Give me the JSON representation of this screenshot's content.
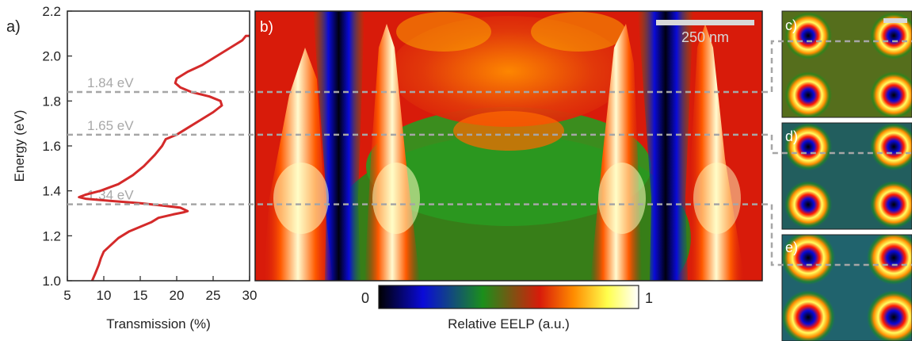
{
  "panels": {
    "a": "a)",
    "b": "b)",
    "c": "c)",
    "d": "d)",
    "e": "e)"
  },
  "chart_data": [
    {
      "type": "line",
      "panel": "a)",
      "xlabel": "Transmission (%)",
      "ylabel": "Energy (eV)",
      "xlim": [
        5,
        30
      ],
      "ylim": [
        1.0,
        2.2
      ],
      "xticks": [
        "5",
        "10",
        "15",
        "20",
        "25",
        "30"
      ],
      "yticks": [
        "1.0",
        "1.2",
        "1.4",
        "1.6",
        "1.8",
        "2.0",
        "2.2"
      ],
      "series_color": "#d42a2a",
      "points": [
        [
          8.4,
          1.0
        ],
        [
          8.8,
          1.03
        ],
        [
          9.3,
          1.07
        ],
        [
          9.6,
          1.1
        ],
        [
          10.0,
          1.13
        ],
        [
          11.0,
          1.16
        ],
        [
          12.0,
          1.19
        ],
        [
          13.5,
          1.22
        ],
        [
          15.0,
          1.24
        ],
        [
          16.5,
          1.26
        ],
        [
          17.5,
          1.28
        ],
        [
          19.5,
          1.295
        ],
        [
          21.0,
          1.305
        ],
        [
          21.5,
          1.31
        ],
        [
          20.5,
          1.325
        ],
        [
          18.0,
          1.335
        ],
        [
          15.0,
          1.345
        ],
        [
          11.0,
          1.355
        ],
        [
          7.5,
          1.365
        ],
        [
          6.6,
          1.372
        ],
        [
          7.5,
          1.383
        ],
        [
          9.5,
          1.4
        ],
        [
          12.0,
          1.43
        ],
        [
          14.0,
          1.47
        ],
        [
          15.5,
          1.51
        ],
        [
          17.0,
          1.56
        ],
        [
          18.0,
          1.6
        ],
        [
          18.5,
          1.63
        ],
        [
          20.0,
          1.65
        ],
        [
          21.5,
          1.68
        ],
        [
          23.5,
          1.72
        ],
        [
          25.0,
          1.75
        ],
        [
          26.2,
          1.78
        ],
        [
          26.0,
          1.8
        ],
        [
          24.5,
          1.82
        ],
        [
          22.0,
          1.84
        ],
        [
          20.5,
          1.86
        ],
        [
          19.8,
          1.88
        ],
        [
          20.0,
          1.9
        ],
        [
          21.5,
          1.93
        ],
        [
          23.5,
          1.96
        ],
        [
          25.0,
          1.99
        ],
        [
          26.5,
          2.02
        ],
        [
          28.0,
          2.05
        ],
        [
          29.0,
          2.07
        ],
        [
          29.5,
          2.09
        ],
        [
          30.0,
          2.09
        ]
      ],
      "hlines": [
        {
          "energy": 1.84,
          "label": "1.84 eV"
        },
        {
          "energy": 1.65,
          "label": "1.65 eV"
        },
        {
          "energy": 1.34,
          "label": "1.34 eV"
        }
      ]
    },
    {
      "type": "heatmap",
      "panel": "b)",
      "ylim": [
        1.0,
        2.2
      ],
      "colormap": [
        "#000000",
        "#0a0ad8",
        "#1b8f1b",
        "#d81b0a",
        "#ff8c00",
        "#ffff4d",
        "#ffffff"
      ],
      "colorbar": {
        "min_label": "0",
        "max_label": "1",
        "label": "Relative EELP (a.u.)"
      },
      "scalebar_label": "250 nm"
    }
  ]
}
